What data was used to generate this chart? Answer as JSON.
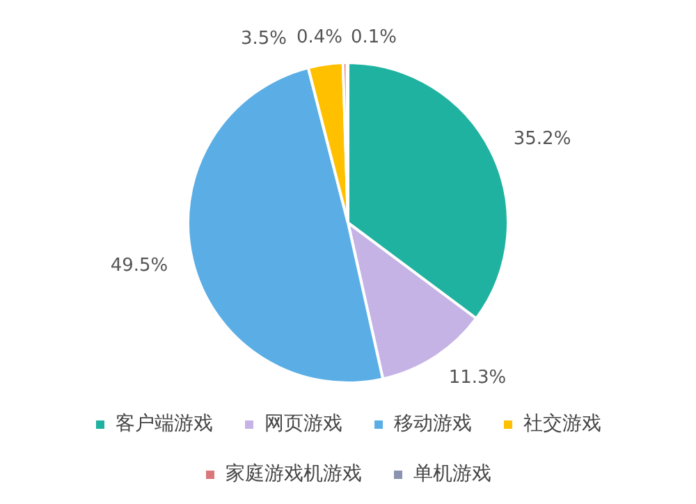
{
  "chart_data": {
    "type": "pie",
    "categories": [
      "客户端游戏",
      "网页游戏",
      "移动游戏",
      "社交游戏",
      "家庭游戏机游戏",
      "单机游戏"
    ],
    "values": [
      35.2,
      11.3,
      49.5,
      3.5,
      0.4,
      0.1
    ],
    "colors": [
      "#20b2a0",
      "#c5b3e6",
      "#5aaee5",
      "#ffc000",
      "#d9777a",
      "#8a94b0"
    ],
    "value_labels": [
      "35.2%",
      "11.3%",
      "49.5%",
      "3.5%",
      "0.4%",
      "0.1%"
    ],
    "legend": "bottom"
  }
}
